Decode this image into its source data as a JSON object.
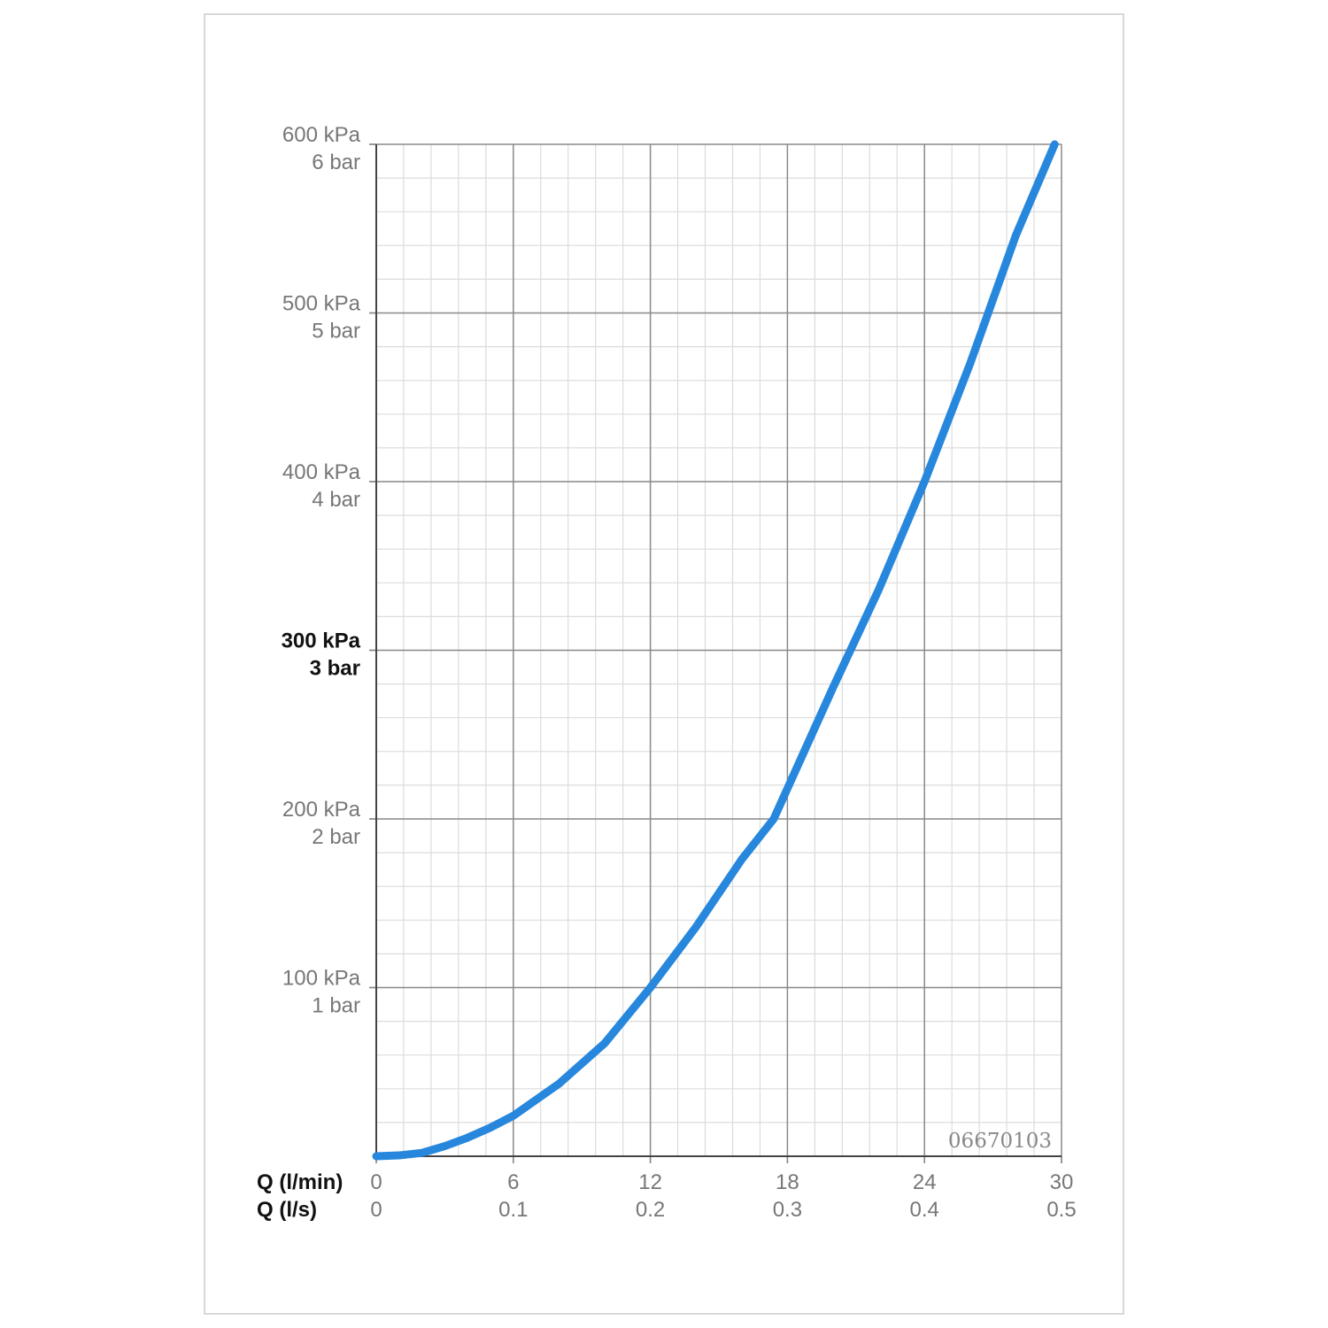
{
  "chart_data": {
    "type": "line",
    "xlabel": "Q (l/min)",
    "x2label": "Q (l/s)",
    "annotation": "06670103",
    "xlim": [
      0,
      30
    ],
    "xticks": [
      0,
      6,
      12,
      18,
      24,
      30
    ],
    "x2lim": [
      0,
      0.5
    ],
    "x2ticks": [
      0,
      0.1,
      0.2,
      0.3,
      0.4,
      0.5
    ],
    "ylim": [
      0,
      600
    ],
    "yticks": [
      {
        "value": 100,
        "label": "100 kPa"
      },
      {
        "value": 200,
        "label": "200 kPa"
      },
      {
        "value": 300,
        "label": "300 kPa",
        "bold": true
      },
      {
        "value": 400,
        "label": "400 kPa"
      },
      {
        "value": 500,
        "label": "500 kPa"
      },
      {
        "value": 600,
        "label": "600 kPa"
      }
    ],
    "y2lim": [
      0,
      6
    ],
    "y2ticks": [
      {
        "value": 1,
        "label": "1 bar"
      },
      {
        "value": 2,
        "label": "2 bar"
      },
      {
        "value": 3,
        "label": "3 bar",
        "bold": true
      },
      {
        "value": 4,
        "label": "4 bar"
      },
      {
        "value": 5,
        "label": "5 bar"
      },
      {
        "value": 6,
        "label": "6 bar"
      }
    ],
    "grid": true,
    "minor_grid_step": {
      "x": 1.2,
      "y": 20
    },
    "x": [
      0,
      1,
      2,
      3,
      4,
      5,
      6,
      8,
      10,
      12,
      14,
      16,
      17.4,
      18,
      20,
      22,
      24,
      26,
      28,
      29.7
    ],
    "series": [
      {
        "color": "#2787dc",
        "values": [
          0,
          0.5,
          2,
          6,
          11,
          17,
          24,
          43,
          67,
          100,
          136,
          176,
          200,
          218,
          278,
          336,
          400,
          470,
          546,
          600
        ]
      }
    ]
  }
}
